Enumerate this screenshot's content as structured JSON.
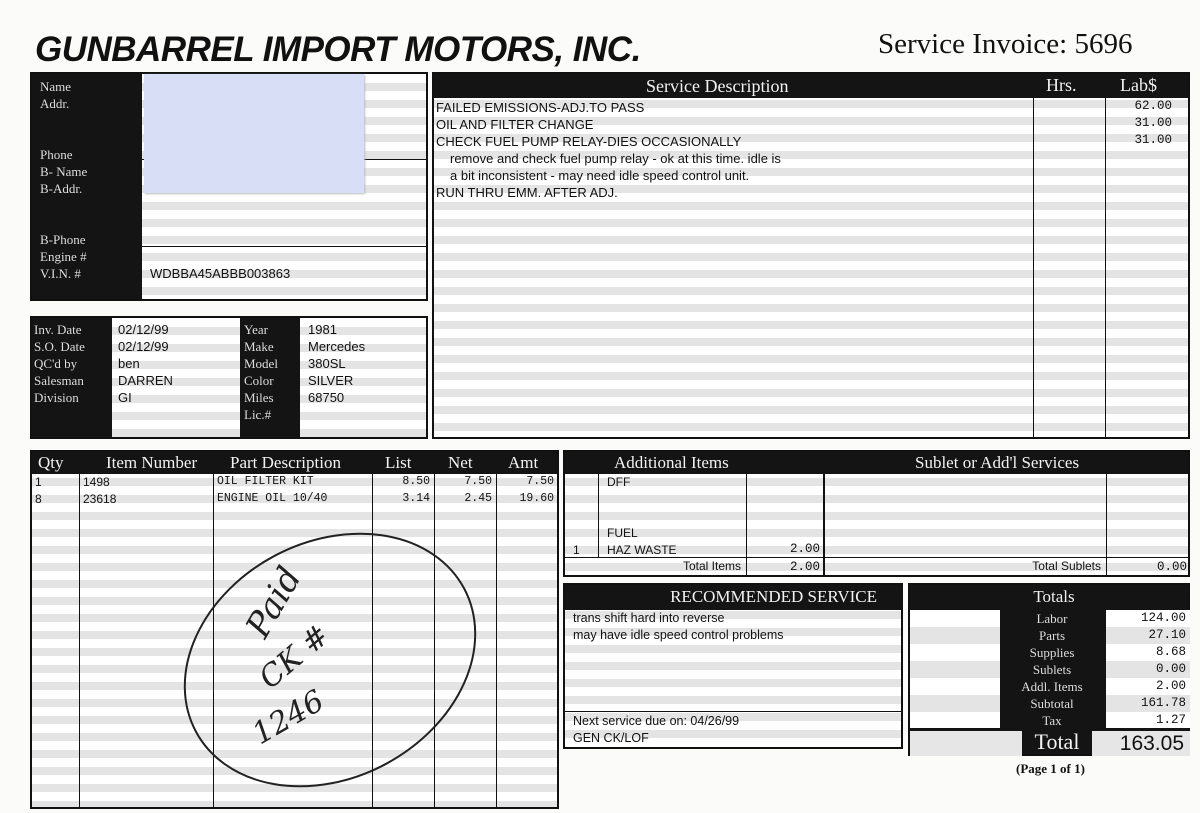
{
  "header": {
    "company": "GUNBARREL IMPORT MOTORS, INC.",
    "invoice_label": "Service Invoice: 5696"
  },
  "customer": {
    "labels": [
      "Name",
      "Addr.",
      "",
      "",
      "Phone",
      "B- Name",
      "B-Addr.",
      "",
      "",
      "B-Phone",
      "Engine #",
      "V.I.N. #"
    ],
    "vin": "WDBBA45ABBB003863",
    "redaction_color": "#d8def5"
  },
  "vehicle": {
    "left": [
      {
        "label": "Inv. Date",
        "value": "02/12/99"
      },
      {
        "label": "S.O. Date",
        "value": "02/12/99"
      },
      {
        "label": "QC'd by",
        "value": "ben"
      },
      {
        "label": "Salesman",
        "value": "DARREN"
      },
      {
        "label": "Division",
        "value": "GI"
      }
    ],
    "right": [
      {
        "label": "Year",
        "value": "1981"
      },
      {
        "label": "Make",
        "value": "Mercedes"
      },
      {
        "label": "Model",
        "value": "380SL"
      },
      {
        "label": "Color",
        "value": "SILVER"
      },
      {
        "label": "Miles",
        "value": "68750"
      },
      {
        "label": "Lic.#",
        "value": ""
      }
    ]
  },
  "service": {
    "headers": [
      "Service Description",
      "Hrs.",
      "Lab$"
    ],
    "lines": [
      {
        "text": "FAILED EMISSIONS-ADJ.TO PASS",
        "lab": "62.00"
      },
      {
        "text": "OIL AND FILTER CHANGE",
        "lab": "31.00"
      },
      {
        "text": "CHECK FUEL PUMP RELAY-DIES OCCASIONALLY",
        "lab": "31.00"
      },
      {
        "text": "remove and check fuel pump relay - ok at this time. idle is",
        "lab": ""
      },
      {
        "text": "a bit inconsistent - may need idle speed control unit.",
        "lab": ""
      },
      {
        "text": "RUN THRU EMM. AFTER ADJ.",
        "lab": ""
      }
    ]
  },
  "parts": {
    "headers": [
      "Qty",
      "Item Number",
      "Part Description",
      "List",
      "Net",
      "Amt"
    ],
    "rows": [
      [
        "1",
        "1498",
        "OIL FILTER KIT",
        "8.50",
        "7.50",
        "7.50"
      ],
      [
        "8",
        "23618",
        "ENGINE OIL 10/40",
        "3.14",
        "2.45",
        "19.60"
      ]
    ]
  },
  "handwriting": {
    "lines": [
      "Paid",
      "CK #",
      "1246"
    ]
  },
  "additional": {
    "header": "Additional Items",
    "rows": [
      {
        "qty": "",
        "desc": "DFF",
        "amt": ""
      },
      {
        "qty": "",
        "desc": "FUEL",
        "amt": ""
      },
      {
        "qty": "1",
        "desc": "HAZ WASTE",
        "amt": "2.00"
      }
    ],
    "total_label": "Total Items",
    "total": "2.00"
  },
  "sublet": {
    "header": "Sublet or Add'l Services",
    "total_label": "Total Sublets",
    "total": "0.00"
  },
  "recommended": {
    "header": "RECOMMENDED SERVICE",
    "lines": [
      "trans shift hard into reverse",
      "may have idle speed control problems"
    ],
    "next_service": "Next service due on: 04/26/99",
    "next_note": "GEN CK/LOF"
  },
  "totals": {
    "header": "Totals",
    "rows": [
      {
        "label": "Labor",
        "value": "124.00"
      },
      {
        "label": "Parts",
        "value": "27.10"
      },
      {
        "label": "Supplies",
        "value": "8.68"
      },
      {
        "label": "Sublets",
        "value": "0.00"
      },
      {
        "label": "Addl. Items",
        "value": "2.00"
      },
      {
        "label": "Subtotal",
        "value": "161.78"
      },
      {
        "label": "Tax",
        "value": "1.27"
      }
    ],
    "total_label": "Total",
    "total": "163.05"
  },
  "footer": {
    "page": "(Page 1 of 1)"
  }
}
